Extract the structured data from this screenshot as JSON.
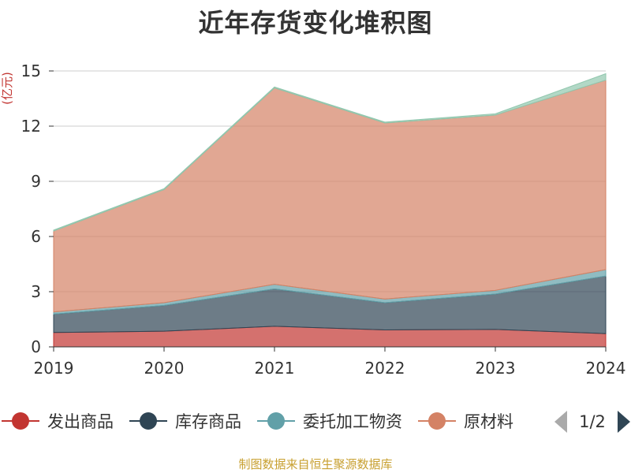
{
  "chart_data": {
    "type": "area",
    "stacked": true,
    "title": "近年存货变化堆积图",
    "ylabel": "(亿元)",
    "ylim": [
      0,
      15
    ],
    "yticks": [
      0,
      3,
      6,
      9,
      12,
      15
    ],
    "grid": true,
    "legend_position": "bottom",
    "categories": [
      "2019",
      "2020",
      "2021",
      "2022",
      "2023",
      "2024"
    ],
    "series": [
      {
        "name": "发出商品",
        "color": "#c23531",
        "values": [
          0.78,
          0.85,
          1.12,
          0.92,
          0.95,
          0.72
        ]
      },
      {
        "name": "库存商品",
        "color": "#2f4554",
        "values": [
          1.0,
          1.4,
          2.03,
          1.48,
          1.92,
          3.13
        ]
      },
      {
        "name": "委托加工物资",
        "color": "#61a0a8",
        "values": [
          0.12,
          0.15,
          0.25,
          0.2,
          0.2,
          0.35
        ]
      },
      {
        "name": "原材料",
        "color": "#d48265",
        "values": [
          4.4,
          6.15,
          10.68,
          9.57,
          9.53,
          10.3
        ]
      },
      {
        "name": "",
        "color": "#91c7ae",
        "values": [
          0.05,
          0.05,
          0.05,
          0.05,
          0.07,
          0.35
        ]
      }
    ],
    "legend_page": "1/2"
  },
  "footer": "制图数据来自恒生聚源数据库"
}
